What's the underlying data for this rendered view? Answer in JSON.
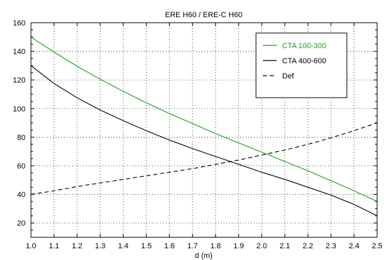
{
  "chart_data": {
    "type": "line",
    "title": "ERE H60 / ERE-C H60",
    "xlabel": "d (m)",
    "ylabel": "",
    "xlim": [
      1.0,
      2.5
    ],
    "ylim": [
      10,
      160
    ],
    "x_ticks": [
      "1.0",
      "1.1",
      "1.2",
      "1.3",
      "1.4",
      "1.5",
      "1.6",
      "1.7",
      "1.8",
      "1.9",
      "2.0",
      "2.1",
      "2.2",
      "2.3",
      "2.4",
      "2.5"
    ],
    "y_ticks": [
      "20",
      "40",
      "60",
      "80",
      "100",
      "120",
      "140",
      "160"
    ],
    "grid": true,
    "legend_position": "top-right",
    "series": [
      {
        "name": "CTA 100-300",
        "color": "#1a9e1a",
        "dash": "solid",
        "x": [
          1.0,
          1.1,
          1.2,
          1.3,
          1.4,
          1.5,
          1.6,
          1.7,
          1.8,
          1.9,
          2.0,
          2.1,
          2.2,
          2.3,
          2.4,
          2.5
        ],
        "y": [
          150,
          139.5,
          129.5,
          120.5,
          112,
          104,
          96.5,
          89.5,
          82.5,
          76,
          69.5,
          63,
          56.5,
          49.5,
          42.5,
          35
        ]
      },
      {
        "name": "CTA 400-600",
        "color": "#000000",
        "dash": "solid",
        "x": [
          1.0,
          1.1,
          1.2,
          1.3,
          1.4,
          1.5,
          1.6,
          1.7,
          1.8,
          1.9,
          2.0,
          2.1,
          2.2,
          2.3,
          2.4,
          2.5
        ],
        "y": [
          130,
          117.5,
          107.5,
          99,
          91.5,
          84.5,
          78,
          72,
          66.5,
          61,
          55.5,
          50.5,
          45,
          39.5,
          33,
          25
        ]
      },
      {
        "name": "Def",
        "color": "#000000",
        "dash": "dashed",
        "x": [
          1.0,
          1.1,
          1.2,
          1.3,
          1.4,
          1.5,
          1.6,
          1.7,
          1.8,
          1.9,
          2.0,
          2.1,
          2.2,
          2.3,
          2.4,
          2.5
        ],
        "y": [
          40,
          42.5,
          45.5,
          48,
          50.5,
          53,
          55.5,
          58,
          61,
          64,
          67.5,
          71,
          75,
          79.5,
          84.5,
          90
        ]
      }
    ]
  }
}
